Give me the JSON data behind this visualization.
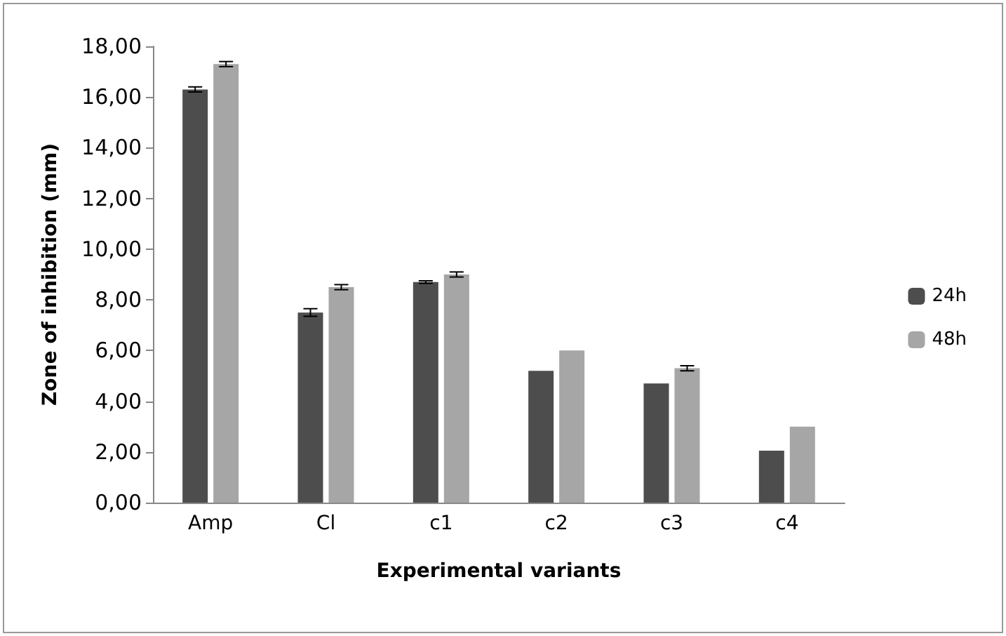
{
  "chart_data": {
    "type": "bar",
    "xlabel": "Experimental variants",
    "ylabel": "Zone of inhibition (mm)",
    "categories": [
      "Amp",
      "Cl",
      "c1",
      "c2",
      "c3",
      "c4"
    ],
    "series": [
      {
        "name": "24h",
        "color": "#4d4d4d",
        "values": [
          16.3,
          7.5,
          8.7,
          5.2,
          4.7,
          2.05
        ],
        "errors": [
          0.1,
          0.15,
          0.05,
          null,
          null,
          null
        ]
      },
      {
        "name": "48h",
        "color": "#a6a6a6",
        "values": [
          17.3,
          8.5,
          9.0,
          6.0,
          5.3,
          3.0
        ],
        "errors": [
          0.1,
          0.1,
          0.1,
          null,
          0.1,
          null
        ]
      }
    ],
    "ylim": [
      0,
      18
    ],
    "yticks": [
      {
        "value": 0,
        "label": "0,00"
      },
      {
        "value": 2,
        "label": "2,00"
      },
      {
        "value": 4,
        "label": "4,00"
      },
      {
        "value": 6,
        "label": "6,00"
      },
      {
        "value": 8,
        "label": "8,00"
      },
      {
        "value": 10,
        "label": "10,00"
      },
      {
        "value": 12,
        "label": "12,00"
      },
      {
        "value": 14,
        "label": "14,00"
      },
      {
        "value": 16,
        "label": "16,00"
      },
      {
        "value": 18,
        "label": "18,00"
      }
    ],
    "grid": false,
    "legend": "right"
  }
}
